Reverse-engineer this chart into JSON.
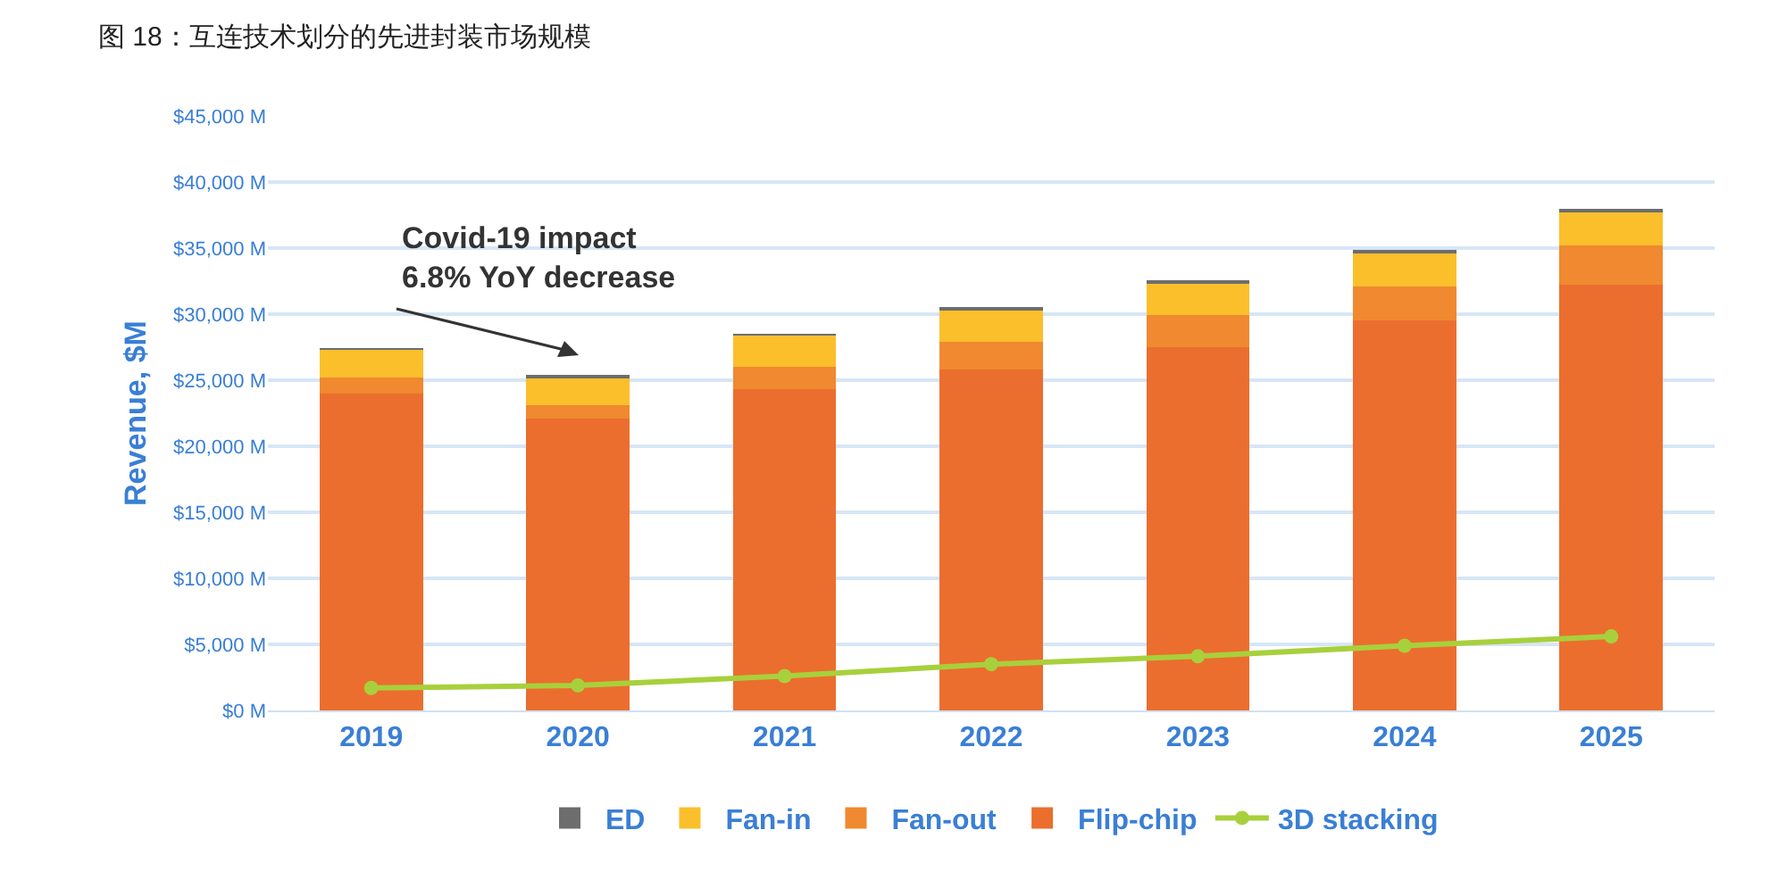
{
  "chart_data": {
    "type": "bar",
    "title": "图 18：互连技术划分的先进封装市场规模",
    "ylabel": "Revenue, $M",
    "categories": [
      "2019",
      "2020",
      "2021",
      "2022",
      "2023",
      "2024",
      "2025"
    ],
    "stacked": true,
    "series": [
      {
        "name": "Flip-chip",
        "color": "#eb6e2e",
        "values": [
          24000,
          22100,
          24300,
          25800,
          27500,
          29500,
          32200
        ]
      },
      {
        "name": "Fan-out",
        "color": "#f0892f",
        "values": [
          1200,
          1000,
          1700,
          2100,
          2400,
          2600,
          3000
        ]
      },
      {
        "name": "Fan-in",
        "color": "#fbbf2c",
        "values": [
          2100,
          2100,
          2400,
          2500,
          2500,
          2600,
          2600
        ]
      },
      {
        "name": "ED",
        "color": "#6d6d6d",
        "values": [
          100,
          100,
          100,
          100,
          100,
          100,
          200
        ]
      },
      {
        "name": "3D stacking",
        "type": "line",
        "color": "#a8d03c",
        "marker": "circle",
        "values": [
          1700,
          1900,
          2600,
          3500,
          4100,
          4900,
          5600
        ]
      }
    ],
    "ylim": [
      0,
      45000
    ],
    "yticks": [
      {
        "value": 0,
        "label": "$0 M"
      },
      {
        "value": 5000,
        "label": "$5,000 M"
      },
      {
        "value": 10000,
        "label": "$10,000 M"
      },
      {
        "value": 15000,
        "label": "$15,000 M"
      },
      {
        "value": 20000,
        "label": "$20,000 M"
      },
      {
        "value": 25000,
        "label": "$25,000 M"
      },
      {
        "value": 30000,
        "label": "$30,000 M"
      },
      {
        "value": 35000,
        "label": "$35,000 M"
      },
      {
        "value": 40000,
        "label": "$40,000 M"
      },
      {
        "value": 45000,
        "label": "$45,000 M"
      }
    ],
    "grid": "y",
    "legend": "bottom",
    "annotations": [
      "Covid-19 impact\n6.8% YoY decrease"
    ]
  }
}
